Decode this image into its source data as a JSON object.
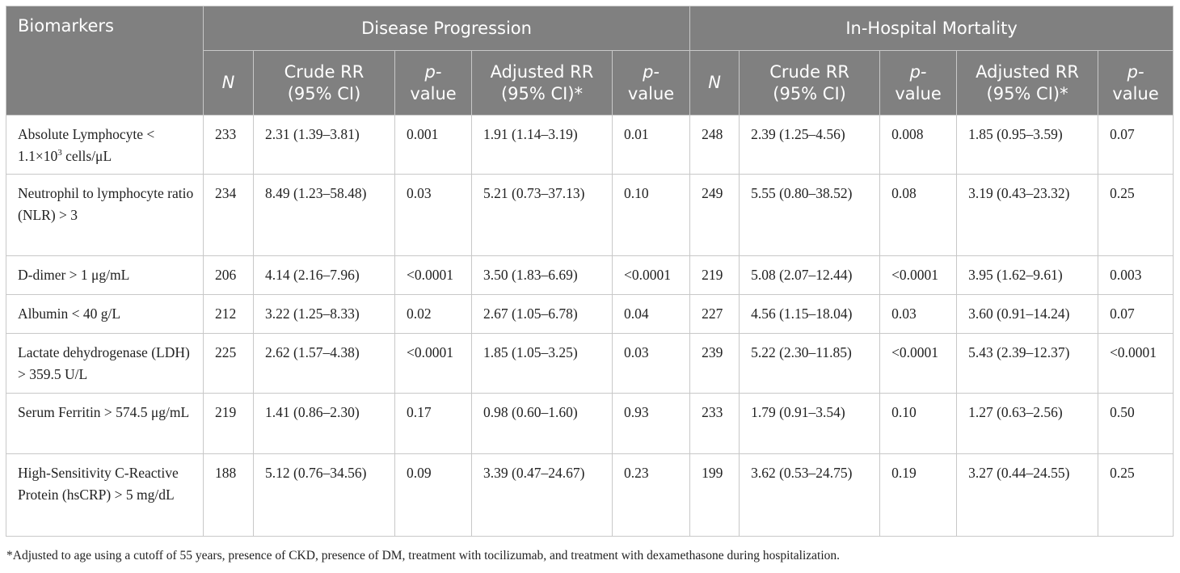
{
  "header": {
    "biomarkers": "Biomarkers",
    "group1": "Disease Progression",
    "group2": "In-Hospital Mortality",
    "cols": {
      "n": "N",
      "crude_line1": "Crude RR",
      "crude_line2": "(95% CI)",
      "p_line1": "p-",
      "p_line2": "value",
      "adj_line1": "Adjusted RR",
      "adj_line2": "(95% CI)*"
    }
  },
  "rows": [
    {
      "label": {
        "pre": "Absolute Lymphocyte < 1.1×10",
        "sup": "3",
        "post": " cells/μL"
      },
      "dp": {
        "n": "233",
        "crude": "2.31 (1.39–3.81)",
        "p1": "0.001",
        "adj": "1.91 (1.14–3.19)",
        "p2": "0.01"
      },
      "ihm": {
        "n": "248",
        "crude": "2.39 (1.25–4.56)",
        "p1": "0.008",
        "adj": "1.85 (0.95–3.59)",
        "p2": "0.07"
      }
    },
    {
      "label": "Neutrophil to lymphocyte ratio (NLR) > 3",
      "dp": {
        "n": "234",
        "crude": "8.49 (1.23–58.48)",
        "p1": "0.03",
        "adj": "5.21 (0.73–37.13)",
        "p2": "0.10"
      },
      "ihm": {
        "n": "249",
        "crude": "5.55 (0.80–38.52)",
        "p1": "0.08",
        "adj": "3.19 (0.43–23.32)",
        "p2": "0.25"
      }
    },
    {
      "label": "D-dimer > 1 μg/mL",
      "dp": {
        "n": "206",
        "crude": "4.14 (2.16–7.96)",
        "p1": "<0.0001",
        "adj": "3.50 (1.83–6.69)",
        "p2": "<0.0001"
      },
      "ihm": {
        "n": "219",
        "crude": "5.08 (2.07–12.44)",
        "p1": "<0.0001",
        "adj": "3.95 (1.62–9.61)",
        "p2": "0.003"
      }
    },
    {
      "label": "Albumin < 40 g/L",
      "dp": {
        "n": "212",
        "crude": "3.22 (1.25–8.33)",
        "p1": "0.02",
        "adj": "2.67 (1.05–6.78)",
        "p2": "0.04"
      },
      "ihm": {
        "n": "227",
        "crude": "4.56 (1.15–18.04)",
        "p1": "0.03",
        "adj": "3.60 (0.91–14.24)",
        "p2": "0.07"
      }
    },
    {
      "label": "Lactate dehydrogenase (LDH) > 359.5 U/L",
      "dp": {
        "n": "225",
        "crude": "2.62 (1.57–4.38)",
        "p1": "<0.0001",
        "adj": "1.85 (1.05–3.25)",
        "p2": "0.03"
      },
      "ihm": {
        "n": "239",
        "crude": "5.22 (2.30–11.85)",
        "p1": "<0.0001",
        "adj": "5.43 (2.39–12.37)",
        "p2": "<0.0001"
      }
    },
    {
      "label": "Serum Ferritin > 574.5 μg/mL",
      "dp": {
        "n": "219",
        "crude": "1.41 (0.86–2.30)",
        "p1": "0.17",
        "adj": "0.98 (0.60–1.60)",
        "p2": "0.93"
      },
      "ihm": {
        "n": "233",
        "crude": "1.79 (0.91–3.54)",
        "p1": "0.10",
        "adj": "1.27 (0.63–2.56)",
        "p2": "0.50"
      }
    },
    {
      "label": "High-Sensitivity C-Reactive Protein (hsCRP) > 5 mg/dL",
      "dp": {
        "n": "188",
        "crude": "5.12 (0.76–34.56)",
        "p1": "0.09",
        "adj": "3.39 (0.47–24.67)",
        "p2": "0.23"
      },
      "ihm": {
        "n": "199",
        "crude": "3.62 (0.53–24.75)",
        "p1": "0.19",
        "adj": "3.27 (0.44–24.55)",
        "p2": "0.25"
      }
    }
  ],
  "footnote": "*Adjusted to age using a cutoff of 55 years, presence of CKD, presence of DM, treatment with tocilizumab, and treatment with dexamethasone during hospitalization."
}
